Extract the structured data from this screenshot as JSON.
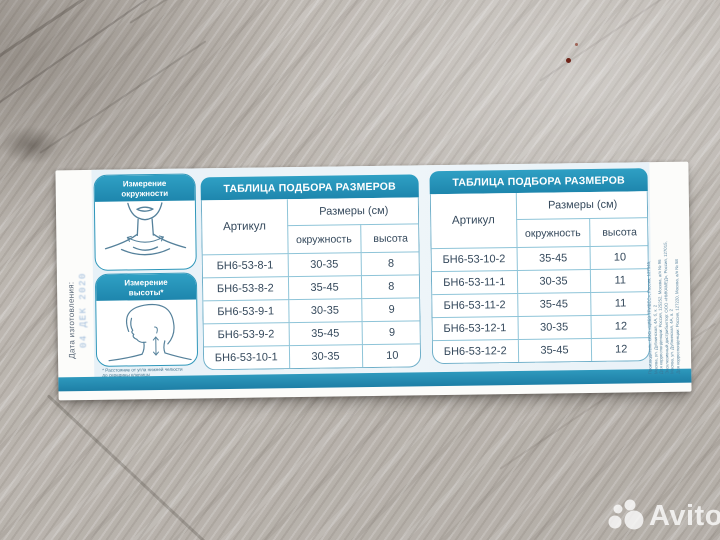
{
  "colors": {
    "accent_teal": "#1f8fb5",
    "band_blue": "#2586ad",
    "wood_gray": "#c9c4be"
  },
  "package": {
    "date_label": "Дата изготовления:",
    "stamp": "04 ДЕК 2020",
    "measure_cards": [
      {
        "title_line1": "Измерение",
        "title_line2": "окружности"
      },
      {
        "title_line1": "Измерение",
        "title_line2": "высоты*"
      }
    ],
    "footnote_lines": [
      "* Расстояние от угла нижней челюсти",
      "до середины ключицы"
    ],
    "tables": [
      {
        "title": "ТАБЛИЦА ПОДБОРА РАЗМЕРОВ",
        "col_article": "Артикул",
        "col_sizes": "Размеры (см)",
        "col_circumference": "окружность",
        "col_height": "высота",
        "rows": [
          [
            "БН6-53-8-1",
            "30-35",
            "8"
          ],
          [
            "БН6-53-8-2",
            "35-45",
            "8"
          ],
          [
            "БН6-53-9-1",
            "30-35",
            "9"
          ],
          [
            "БН6-53-9-2",
            "35-45",
            "9"
          ],
          [
            "БН6-53-10-1",
            "30-35",
            "10"
          ]
        ]
      },
      {
        "title": "ТАБЛИЦА ПОДБОРА РАЗМЕРОВ",
        "col_article": "Артикул",
        "col_sizes": "Размеры (см)",
        "col_circumference": "окружность",
        "col_height": "высота",
        "rows": [
          [
            "БН6-53-10-2",
            "35-45",
            "10"
          ],
          [
            "БН6-53-11-1",
            "30-35",
            "11"
          ],
          [
            "БН6-53-11-2",
            "35-45",
            "11"
          ],
          [
            "БН6-53-12-1",
            "30-35",
            "12"
          ],
          [
            "БН6-53-12-2",
            "35-45",
            "12"
          ]
        ]
      }
    ],
    "side_info_lines": [
      "Производитель: ООО «ЦЛБЗ ТРИВЕС», Россия, 127545,",
      "Москва, ул. Дубнинская, 4А, б, к. 2",
      "Для корреспонденции: Россия, 125252, Москва, а/я № 96",
      "Эксклюзивный дистрибьютор: ООО «НИКАМЕД», Россия, 127015,",
      "Москва, ул. Дубнинская, 4А, а. 2",
      "Для корреспонденции: Россия, 127220, Москва, а/я № 58"
    ]
  },
  "watermark": {
    "text": "Avito"
  }
}
